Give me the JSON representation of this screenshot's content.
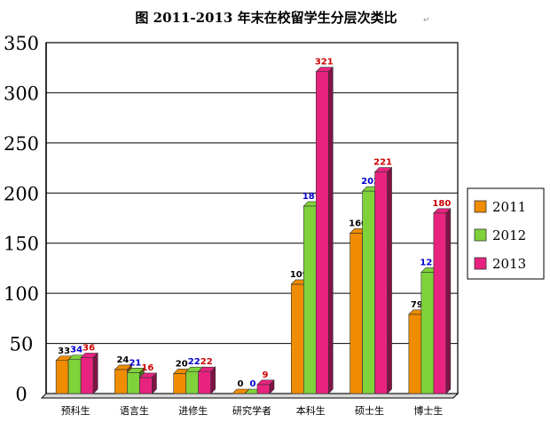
{
  "chart_data": {
    "type": "bar",
    "title": "图  2011-2013 年末在校留学生分层次类比",
    "categories": [
      "预科生",
      "语言生",
      "进修生",
      "研究学者",
      "本科生",
      "硕士生",
      "博士生"
    ],
    "series": [
      {
        "name": "2011",
        "color": "#f08c00",
        "label_color": "#000000",
        "values": [
          33,
          24,
          20,
          0,
          109,
          160,
          79
        ]
      },
      {
        "name": "2012",
        "color": "#7fd23a",
        "label_color": "#0000cc",
        "values": [
          34,
          21,
          22,
          0,
          187,
          202,
          121
        ]
      },
      {
        "name": "2013",
        "color": "#e8237f",
        "label_color": "#cc0000",
        "values": [
          36,
          16,
          22,
          9,
          321,
          221,
          180
        ]
      }
    ],
    "ylim": [
      0,
      350
    ],
    "yticks": [
      "0",
      "50",
      "100",
      "150",
      "200",
      "250",
      "300",
      "350"
    ],
    "grid": true,
    "legend": "right",
    "xlabel": "",
    "ylabel": ""
  },
  "decor": {
    "para_mark": "↵"
  }
}
